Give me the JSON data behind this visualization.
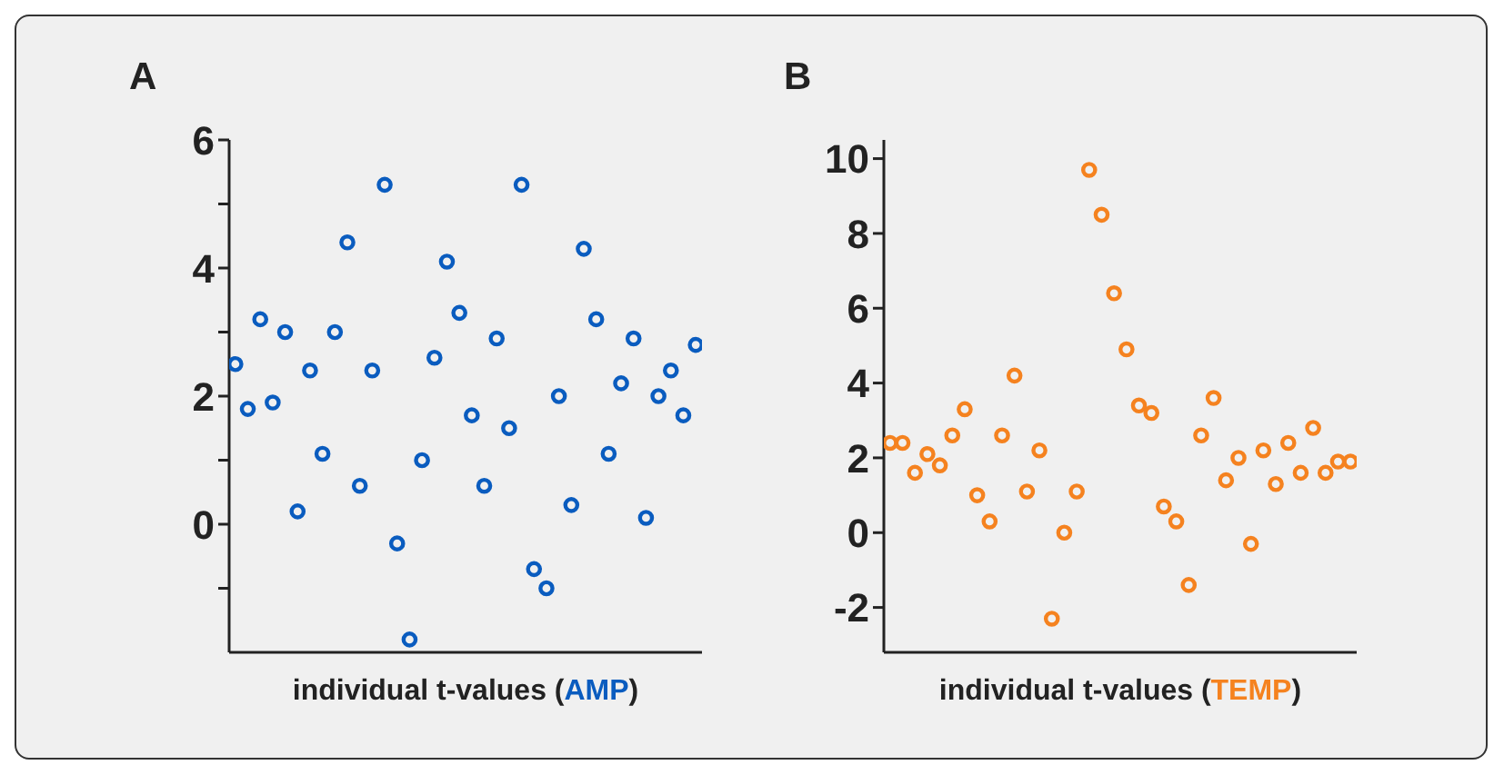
{
  "chart_data": [
    {
      "type": "scatter",
      "title": "A",
      "xlabel": "individual t-values (AMP)",
      "categories": [
        null,
        null,
        null,
        null,
        null,
        null,
        null,
        null,
        null,
        null,
        null,
        null,
        null,
        null,
        null,
        null,
        null,
        null,
        null,
        null,
        null,
        null,
        null,
        null,
        null,
        null,
        null,
        null,
        null,
        null,
        null,
        null,
        null,
        null,
        null,
        null,
        null,
        null
      ],
      "series": [
        {
          "color": "#0a5cbf",
          "values": [
            2.5,
            1.8,
            3.2,
            1.9,
            3.0,
            0.2,
            2.4,
            1.1,
            3.0,
            4.4,
            0.6,
            2.4,
            5.3,
            -0.3,
            -1.8,
            1.0,
            2.6,
            4.1,
            3.3,
            1.7,
            0.6,
            2.9,
            1.5,
            5.3,
            -0.7,
            -1.0,
            2.0,
            0.3,
            4.3,
            3.2,
            1.1,
            2.2,
            2.9,
            0.1,
            2.0,
            2.4,
            1.7,
            2.8
          ]
        }
      ],
      "ylim": [
        -2,
        6
      ],
      "yticks": [
        {
          "value": -1,
          "label": null
        },
        0,
        {
          "value": 1,
          "label": null
        },
        2,
        {
          "value": 3,
          "label": null
        },
        4,
        {
          "value": 5,
          "label": null
        },
        6
      ],
      "marker": "circle",
      "tick_labels": "y",
      "grid": false,
      "legend": false
    },
    {
      "type": "scatter",
      "title": "B",
      "xlabel": "individual t-values (TEMP)",
      "categories": [
        null,
        null,
        null,
        null,
        null,
        null,
        null,
        null,
        null,
        null,
        null,
        null,
        null,
        null,
        null,
        null,
        null,
        null,
        null,
        null,
        null,
        null,
        null,
        null,
        null,
        null,
        null,
        null,
        null,
        null,
        null,
        null,
        null,
        null,
        null,
        null,
        null,
        null
      ],
      "series": [
        {
          "color": "#f5821f",
          "values": [
            2.4,
            2.4,
            1.6,
            2.1,
            1.8,
            2.6,
            3.3,
            1.0,
            0.3,
            2.6,
            4.2,
            1.1,
            2.2,
            -2.3,
            0.0,
            1.1,
            9.7,
            8.5,
            6.4,
            4.9,
            3.4,
            3.2,
            0.7,
            0.3,
            -1.4,
            2.6,
            3.6,
            1.4,
            2.0,
            -0.3,
            2.2,
            1.3,
            2.4,
            1.6,
            2.8,
            1.6,
            1.9,
            1.9
          ]
        }
      ],
      "ylim": [
        -3.2,
        10.5
      ],
      "yticks": [
        -2,
        0,
        2,
        4,
        6,
        8,
        10
      ],
      "marker": "circle",
      "tick_labels": "y",
      "grid": false,
      "legend": false
    }
  ]
}
